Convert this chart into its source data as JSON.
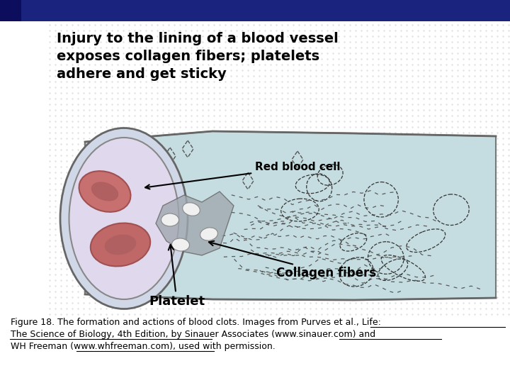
{
  "fig_width": 7.2,
  "fig_height": 5.4,
  "dpi": 100,
  "bg_color": "#ffffff",
  "top_banner_color": "#1a237e",
  "top_banner_gradient_end": "#ffffff",
  "vessel_color": "#b8d8dc",
  "vessel_outline": "#888888",
  "cell_region_color": "#d8cce0",
  "red_blood_cell_color": "#c0706a",
  "collagen_fiber_region_color": "#e8e4d0",
  "main_text_color": "#000000",
  "label_fontsize": 11,
  "caption_fontsize": 9,
  "header_text_line1": "Injury to the lining of a blood vessel",
  "header_text_line2": "exposes collagen fibers; platelets",
  "header_text_line3": "adhere and get sticky",
  "label_red_blood_cell": "Red blood cell",
  "label_collagen_fibers": "Collagen fibers",
  "label_platelet": "Platelet",
  "caption_line1": "Figure 18. The formation and actions of blood clots. Images from Purves et al., Life:",
  "caption_line2": "The Science of Biology, 4th Edition, by Sinauer Associates (www.sinauer.com) and",
  "caption_line3": "WH Freeman (www.whfreeman.com), used with permission.",
  "dotted_pattern_color": "#555555",
  "background_dot_color": "#cccccc"
}
